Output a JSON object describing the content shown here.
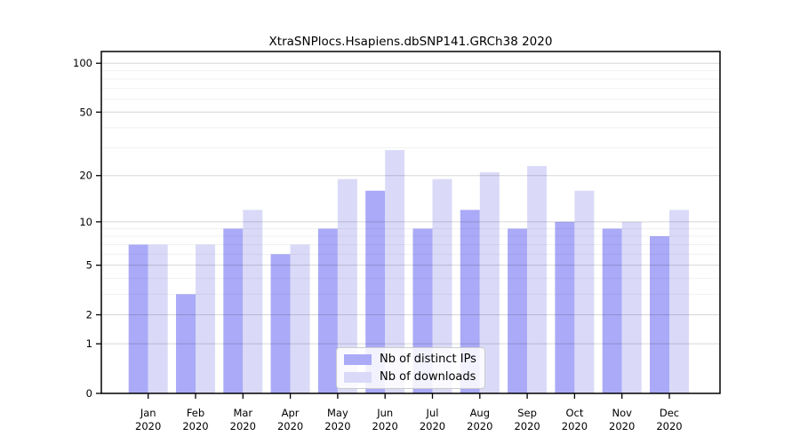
{
  "chart_data": {
    "type": "bar",
    "title": "XtraSNPlocs.Hsapiens.dbSNP141.GRCh38 2020",
    "categories": [
      "Jan\n2020",
      "Feb\n2020",
      "Mar\n2020",
      "Apr\n2020",
      "May\n2020",
      "Jun\n2020",
      "Jul\n2020",
      "Aug\n2020",
      "Sep\n2020",
      "Oct\n2020",
      "Nov\n2020",
      "Dec\n2020"
    ],
    "series": [
      {
        "name": "Nb of distinct IPs",
        "color": "#aaaaf8",
        "values": [
          7,
          3,
          9,
          6,
          9,
          16,
          9,
          12,
          9,
          10,
          9,
          8
        ]
      },
      {
        "name": "Nb of downloads",
        "color": "#dadaf8",
        "values": [
          7,
          7,
          12,
          7,
          19,
          29,
          19,
          21,
          23,
          16,
          10,
          12
        ]
      }
    ],
    "yscale": "log1p",
    "yticks_labeled": [
      0,
      1,
      2,
      5,
      10,
      20,
      50,
      100
    ],
    "yticks_minor": [
      3,
      4,
      6,
      7,
      8,
      9,
      30,
      40,
      60,
      70,
      80,
      90
    ],
    "ylim": [
      0,
      118
    ],
    "xlabel": "",
    "ylabel": "",
    "grid": "on",
    "legend_position": "lower center"
  },
  "colors": {
    "axis": "#000000",
    "grid_major": "rgba(0,0,0,0.16)",
    "grid_minor": "rgba(0,0,0,0.055)",
    "plot_background": "#ffffff"
  }
}
